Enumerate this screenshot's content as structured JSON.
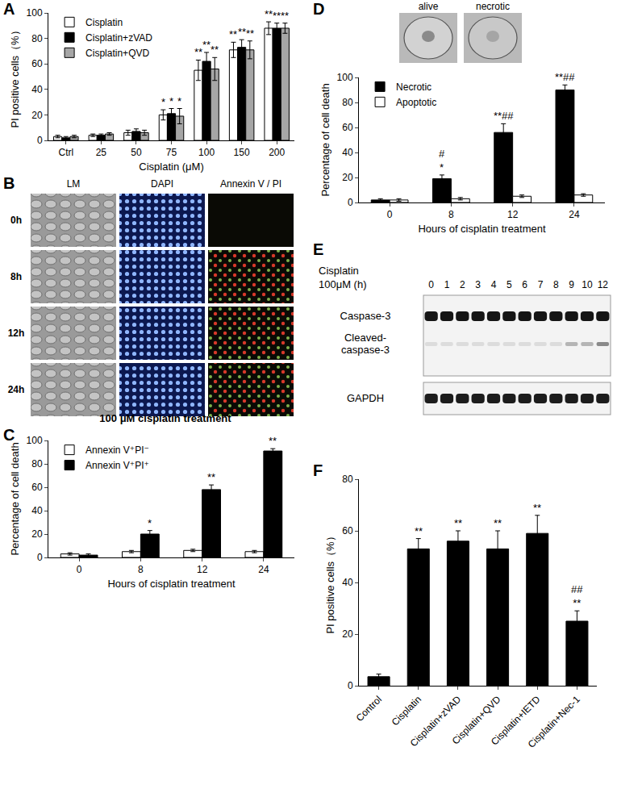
{
  "chart_data": [
    {
      "label": "A",
      "type": "bar",
      "categories": [
        "Ctrl",
        "25",
        "50",
        "75",
        "100",
        "150",
        "200"
      ],
      "x_label": "Cisplatin (μM)",
      "y_label": "PI positive cells（%）",
      "ylim": [
        0,
        100
      ],
      "yticks": [
        0,
        20,
        40,
        60,
        80,
        100
      ],
      "legend": "upper left",
      "series": [
        {
          "name": "Cisplatin",
          "color": "#ffffff",
          "values": [
            3,
            4,
            6,
            20,
            55,
            71,
            88
          ],
          "errors": [
            1,
            1,
            2,
            4,
            8,
            6,
            5
          ],
          "significance": [
            null,
            null,
            null,
            [
              "*"
            ],
            [
              "**"
            ],
            [
              "**"
            ],
            [
              "**"
            ]
          ]
        },
        {
          "name": "Cisplatin+zVAD",
          "color": "#000000",
          "values": [
            2,
            4,
            7,
            21,
            62,
            73,
            88
          ],
          "errors": [
            1,
            1,
            2,
            4,
            7,
            6,
            4
          ],
          "significance": [
            null,
            null,
            null,
            [
              "*"
            ],
            [
              "**"
            ],
            [
              "**"
            ],
            [
              "**"
            ]
          ]
        },
        {
          "name": "Cisplatin+QVD",
          "color": "#a6a6a6",
          "values": [
            3,
            5,
            6,
            19,
            56,
            71,
            88
          ],
          "errors": [
            1,
            1,
            2,
            6,
            9,
            7,
            4
          ],
          "significance": [
            null,
            null,
            null,
            [
              "*"
            ],
            [
              "**"
            ],
            [
              "**"
            ],
            [
              "**"
            ]
          ]
        }
      ]
    },
    {
      "label": "C",
      "type": "bar",
      "categories": [
        "0",
        "8",
        "12",
        "24"
      ],
      "x_label": "Hours of cisplatin treatment",
      "y_label": "Percentage of cell death",
      "ylim": [
        0,
        100
      ],
      "yticks": [
        0,
        20,
        40,
        60,
        80,
        100
      ],
      "legend": "upper left",
      "series": [
        {
          "name": "Annexin V⁺PI⁻",
          "color": "#ffffff",
          "values": [
            3,
            5,
            6,
            5
          ],
          "errors": [
            1,
            1,
            1,
            1
          ],
          "significance": [
            null,
            null,
            null,
            null
          ]
        },
        {
          "name": "Annexin V⁺PI⁺",
          "color": "#000000",
          "values": [
            2,
            20,
            58,
            91
          ],
          "errors": [
            1,
            3,
            4,
            2
          ],
          "significance": [
            null,
            [
              "*"
            ],
            [
              "**"
            ],
            [
              "**"
            ]
          ]
        }
      ]
    },
    {
      "label": "D",
      "type": "bar",
      "categories": [
        "0",
        "8",
        "12",
        "24"
      ],
      "x_label": "Hours of cisplatin treatment",
      "y_label": "Percentage of cell death",
      "ylim": [
        0,
        100
      ],
      "yticks": [
        0,
        20,
        40,
        60,
        80,
        100
      ],
      "legend": "upper left",
      "series": [
        {
          "name": "Necrotic",
          "color": "#000000",
          "values": [
            2,
            19,
            56,
            90
          ],
          "errors": [
            1,
            3,
            7,
            4
          ],
          "significance": [
            null,
            [
              "#",
              "*"
            ],
            [
              "**##"
            ],
            [
              "**##"
            ]
          ]
        },
        {
          "name": "Apoptotic",
          "color": "#ffffff",
          "values": [
            2,
            3,
            5,
            6
          ],
          "errors": [
            1,
            1,
            1,
            1
          ],
          "significance": [
            null,
            null,
            null,
            null
          ]
        }
      ]
    },
    {
      "label": "F",
      "type": "bar",
      "categories": [
        "Control",
        "Cisplatin",
        "Cisplatin+zVAD",
        "Cisplatin+QVD",
        "Cisplatin+IETD",
        "Cisplatin+Nec-1"
      ],
      "y_label": "PI positive cells（%）",
      "ylim": [
        0,
        80
      ],
      "yticks": [
        0,
        20,
        40,
        60,
        80
      ],
      "color": "#000000",
      "values": [
        3.5,
        53,
        56,
        53,
        59,
        25
      ],
      "errors": [
        1,
        4,
        4,
        7,
        7,
        4
      ],
      "significance": [
        null,
        [
          "**"
        ],
        [
          "**"
        ],
        [
          "**"
        ],
        [
          "**"
        ],
        [
          "##",
          "**"
        ]
      ]
    }
  ],
  "panel_B": {
    "label": "B",
    "columns": [
      "LM",
      "DAPI",
      "Annexin V / PI"
    ],
    "rows": [
      "0h",
      "8h",
      "12h",
      "24h"
    ],
    "caption": "100 μM cisplatin treatment"
  },
  "panel_D_images": {
    "labels": [
      "alive",
      "necrotic"
    ]
  },
  "panel_E": {
    "label": "E",
    "title_lines": [
      "Cisplatin",
      "100μM (h)"
    ],
    "lanes": [
      0,
      1,
      2,
      3,
      4,
      5,
      6,
      7,
      8,
      9,
      10,
      12
    ],
    "bands": [
      [
        "Caspase-3"
      ],
      [
        "Cleaved-",
        "caspase-3"
      ],
      [
        "GAPDH"
      ]
    ]
  }
}
